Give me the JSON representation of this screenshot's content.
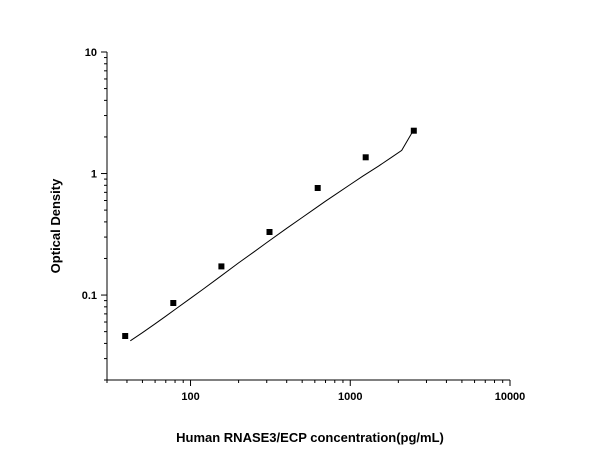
{
  "chart_data": {
    "type": "scatter",
    "xlabel": "Human RNASE3/ECP concentration(pg/mL)",
    "ylabel": "Optical Density",
    "xscale": "log",
    "yscale": "log",
    "xlim": [
      30,
      10000
    ],
    "ylim": [
      0.02,
      10
    ],
    "x_ticks": [
      {
        "value": 100,
        "label": "100"
      },
      {
        "value": 1000,
        "label": "1000"
      },
      {
        "value": 10000,
        "label": "10000"
      }
    ],
    "y_ticks": [
      {
        "value": 0.1,
        "label": "0.1"
      },
      {
        "value": 1,
        "label": "1"
      },
      {
        "value": 10,
        "label": "10"
      }
    ],
    "grid": false,
    "series": [
      {
        "marker": "square",
        "color": "#000000",
        "x": [
          39,
          78,
          156,
          312,
          625,
          1250,
          2500
        ],
        "y": [
          0.046,
          0.086,
          0.172,
          0.33,
          0.76,
          1.36,
          2.25
        ]
      }
    ],
    "fit_curve": {
      "color": "#000000",
      "x": [
        42,
        50,
        60,
        70,
        80,
        100,
        120,
        150,
        200,
        250,
        300,
        400,
        500,
        600,
        700,
        800,
        1000,
        1200,
        1500,
        1800,
        2100,
        2500
      ],
      "y": [
        0.042,
        0.049,
        0.058,
        0.067,
        0.076,
        0.094,
        0.112,
        0.139,
        0.184,
        0.227,
        0.27,
        0.354,
        0.435,
        0.514,
        0.592,
        0.667,
        0.812,
        0.952,
        1.15,
        1.35,
        1.55,
        2.3
      ]
    }
  }
}
